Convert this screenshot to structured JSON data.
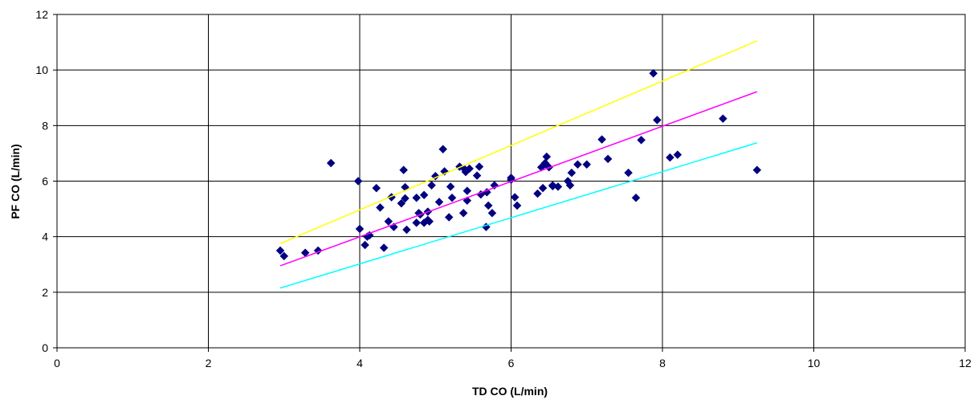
{
  "chart_data": {
    "type": "scatter",
    "title": "",
    "xlabel": "TD CO (L/min)",
    "ylabel": "PF CO (L/min)",
    "xlim": [
      0,
      12
    ],
    "ylim": [
      0,
      12
    ],
    "x_ticks": [
      0,
      2,
      4,
      6,
      8,
      10,
      12
    ],
    "y_ticks": [
      0,
      2,
      4,
      6,
      8,
      10,
      12
    ],
    "grid": true,
    "legend": "none",
    "marker": "diamond",
    "marker_color": "#000080",
    "series": [
      {
        "type": "scatter",
        "color": "#000080",
        "points": [
          [
            2.95,
            3.5
          ],
          [
            3.0,
            3.3
          ],
          [
            3.28,
            3.42
          ],
          [
            3.45,
            3.5
          ],
          [
            3.62,
            6.65
          ],
          [
            3.98,
            6.0
          ],
          [
            4.0,
            4.28
          ],
          [
            4.07,
            3.7
          ],
          [
            4.1,
            4.0
          ],
          [
            4.13,
            4.05
          ],
          [
            4.22,
            5.75
          ],
          [
            4.27,
            5.05
          ],
          [
            4.32,
            3.6
          ],
          [
            4.38,
            4.55
          ],
          [
            4.42,
            5.42
          ],
          [
            4.45,
            4.35
          ],
          [
            4.55,
            5.2
          ],
          [
            4.58,
            6.4
          ],
          [
            4.6,
            5.78
          ],
          [
            4.6,
            5.38
          ],
          [
            4.62,
            4.25
          ],
          [
            4.75,
            5.4
          ],
          [
            4.75,
            4.5
          ],
          [
            4.78,
            4.85
          ],
          [
            4.8,
            4.8
          ],
          [
            4.85,
            5.5
          ],
          [
            4.85,
            4.5
          ],
          [
            4.9,
            4.6
          ],
          [
            4.9,
            4.9
          ],
          [
            4.92,
            4.55
          ],
          [
            4.95,
            5.85
          ],
          [
            5.0,
            6.18
          ],
          [
            5.05,
            5.25
          ],
          [
            5.1,
            7.15
          ],
          [
            5.12,
            6.35
          ],
          [
            5.18,
            4.7
          ],
          [
            5.2,
            5.8
          ],
          [
            5.22,
            5.4
          ],
          [
            5.32,
            6.52
          ],
          [
            5.37,
            4.85
          ],
          [
            5.38,
            6.45
          ],
          [
            5.4,
            6.33
          ],
          [
            5.42,
            5.3
          ],
          [
            5.42,
            5.65
          ],
          [
            5.45,
            6.45
          ],
          [
            5.55,
            6.2
          ],
          [
            5.58,
            6.52
          ],
          [
            5.6,
            5.52
          ],
          [
            5.67,
            4.35
          ],
          [
            5.68,
            5.6
          ],
          [
            5.7,
            5.12
          ],
          [
            5.75,
            4.85
          ],
          [
            5.78,
            5.85
          ],
          [
            6.0,
            6.05
          ],
          [
            6.0,
            6.12
          ],
          [
            6.05,
            5.42
          ],
          [
            6.08,
            5.12
          ],
          [
            6.35,
            5.55
          ],
          [
            6.4,
            6.5
          ],
          [
            6.42,
            5.75
          ],
          [
            6.45,
            6.65
          ],
          [
            6.47,
            6.88
          ],
          [
            6.5,
            6.5
          ],
          [
            6.55,
            5.85
          ],
          [
            6.55,
            5.82
          ],
          [
            6.62,
            5.8
          ],
          [
            6.75,
            6.0
          ],
          [
            6.78,
            5.85
          ],
          [
            6.8,
            6.3
          ],
          [
            6.88,
            6.6
          ],
          [
            7.0,
            6.6
          ],
          [
            7.2,
            7.5
          ],
          [
            7.28,
            6.8
          ],
          [
            7.55,
            6.3
          ],
          [
            7.65,
            5.4
          ],
          [
            7.72,
            7.48
          ],
          [
            7.88,
            9.88
          ],
          [
            7.93,
            8.2
          ],
          [
            8.1,
            6.85
          ],
          [
            8.2,
            6.95
          ],
          [
            8.8,
            8.25
          ],
          [
            9.25,
            6.4
          ]
        ]
      },
      {
        "type": "line",
        "color": "#ffff00",
        "points": [
          [
            2.95,
            3.75
          ],
          [
            9.25,
            11.05
          ]
        ]
      },
      {
        "type": "line",
        "color": "#ff00ff",
        "points": [
          [
            2.95,
            2.95
          ],
          [
            9.25,
            9.22
          ]
        ]
      },
      {
        "type": "line",
        "color": "#00ffff",
        "points": [
          [
            2.95,
            2.15
          ],
          [
            9.25,
            7.38
          ]
        ]
      }
    ]
  }
}
